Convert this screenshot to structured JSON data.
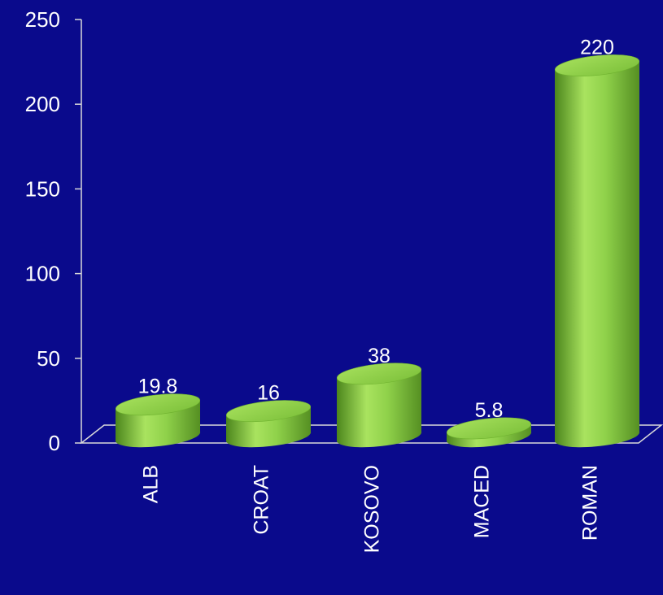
{
  "colors": {
    "background": "#0a0a8c",
    "bar": "#8fd14a",
    "bar_light": "#b3ec6a",
    "bar_dark": "#4f8a1e",
    "axis": "#d9d9d9",
    "text": "#ffffff"
  },
  "chart_data": {
    "type": "bar",
    "categories": [
      "ALB",
      "CROAT",
      "KOSOVO",
      "MACED",
      "ROMAN"
    ],
    "values": [
      19.8,
      16,
      38,
      5.8,
      220
    ],
    "data_labels": [
      "19.8",
      "16",
      "38",
      "5.8",
      "220"
    ],
    "ylim": [
      0,
      250
    ],
    "yticks": [
      "0",
      "50",
      "100",
      "150",
      "200",
      "250"
    ],
    "style": "3d-cylinder",
    "grid": false,
    "legend": "none"
  }
}
